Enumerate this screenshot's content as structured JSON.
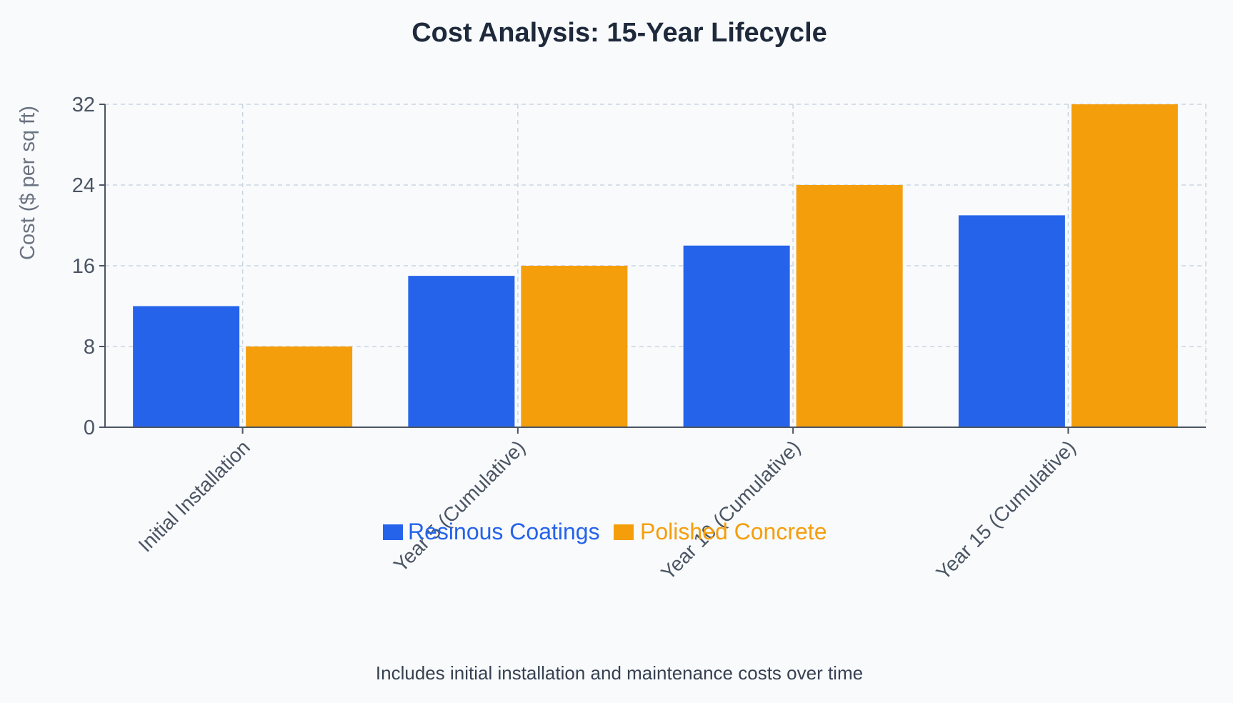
{
  "chart_data": {
    "type": "bar",
    "title": "Cost Analysis: 15-Year Lifecycle",
    "ylabel": "Cost ($ per sq ft)",
    "xlabel": "",
    "categories": [
      "Initial Installation",
      "Year 5 (Cumulative)",
      "Year 10 (Cumulative)",
      "Year 15 (Cumulative)"
    ],
    "series": [
      {
        "name": "Resinous Coatings",
        "color": "#2563eb",
        "values": [
          12,
          15,
          18,
          21
        ]
      },
      {
        "name": "Polished Concrete",
        "color": "#f59e0b",
        "values": [
          8,
          16,
          24,
          32
        ]
      }
    ],
    "ylim": [
      0,
      32
    ],
    "yticks": [
      "0",
      "8",
      "16",
      "24",
      "32"
    ],
    "grid": true,
    "legend_position": "bottom-center",
    "caption": "Includes initial installation and maintenance costs over time"
  }
}
